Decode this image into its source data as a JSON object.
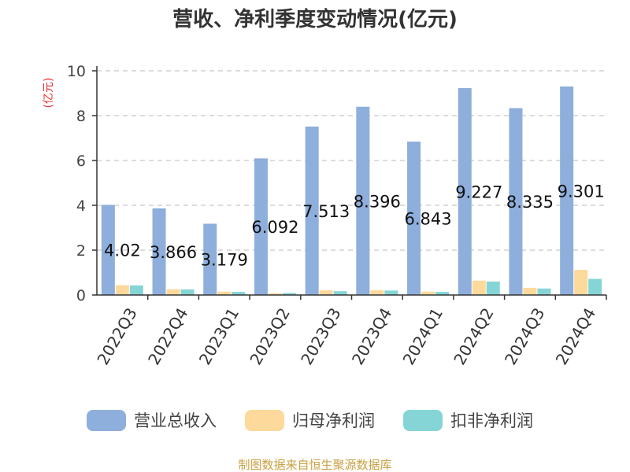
{
  "chart_data": {
    "type": "bar",
    "title": "营收、净利季度变动情况(亿元)",
    "ylabel": "(亿元)",
    "xlabel": "",
    "ylim": [
      0,
      10
    ],
    "yticks": [
      0,
      2,
      4,
      6,
      8,
      10
    ],
    "grid": true,
    "legend_position": "bottom",
    "categories": [
      "2022Q3",
      "2022Q4",
      "2023Q1",
      "2023Q2",
      "2023Q3",
      "2023Q4",
      "2024Q1",
      "2024Q2",
      "2024Q3",
      "2024Q4"
    ],
    "series": [
      {
        "name": "营业总收入",
        "color": "#8eaedc",
        "values": [
          4.02,
          3.866,
          3.179,
          6.092,
          7.513,
          8.396,
          6.843,
          9.227,
          8.335,
          9.301
        ]
      },
      {
        "name": "归母净利润",
        "color": "#fdd99b",
        "values": [
          0.44,
          0.26,
          0.15,
          0.08,
          0.21,
          0.21,
          0.15,
          0.64,
          0.32,
          1.12
        ]
      },
      {
        "name": "扣非净利润",
        "color": "#86d5d6",
        "values": [
          0.43,
          0.25,
          0.14,
          0.09,
          0.17,
          0.2,
          0.14,
          0.6,
          0.29,
          0.72
        ]
      }
    ],
    "data_labels": [
      "4.02",
      "3.866",
      "3.179",
      "6.092",
      "7.513",
      "8.396",
      "6.843",
      "9.227",
      "8.335",
      "9.301"
    ]
  },
  "source": "制图数据来自恒生聚源数据库"
}
